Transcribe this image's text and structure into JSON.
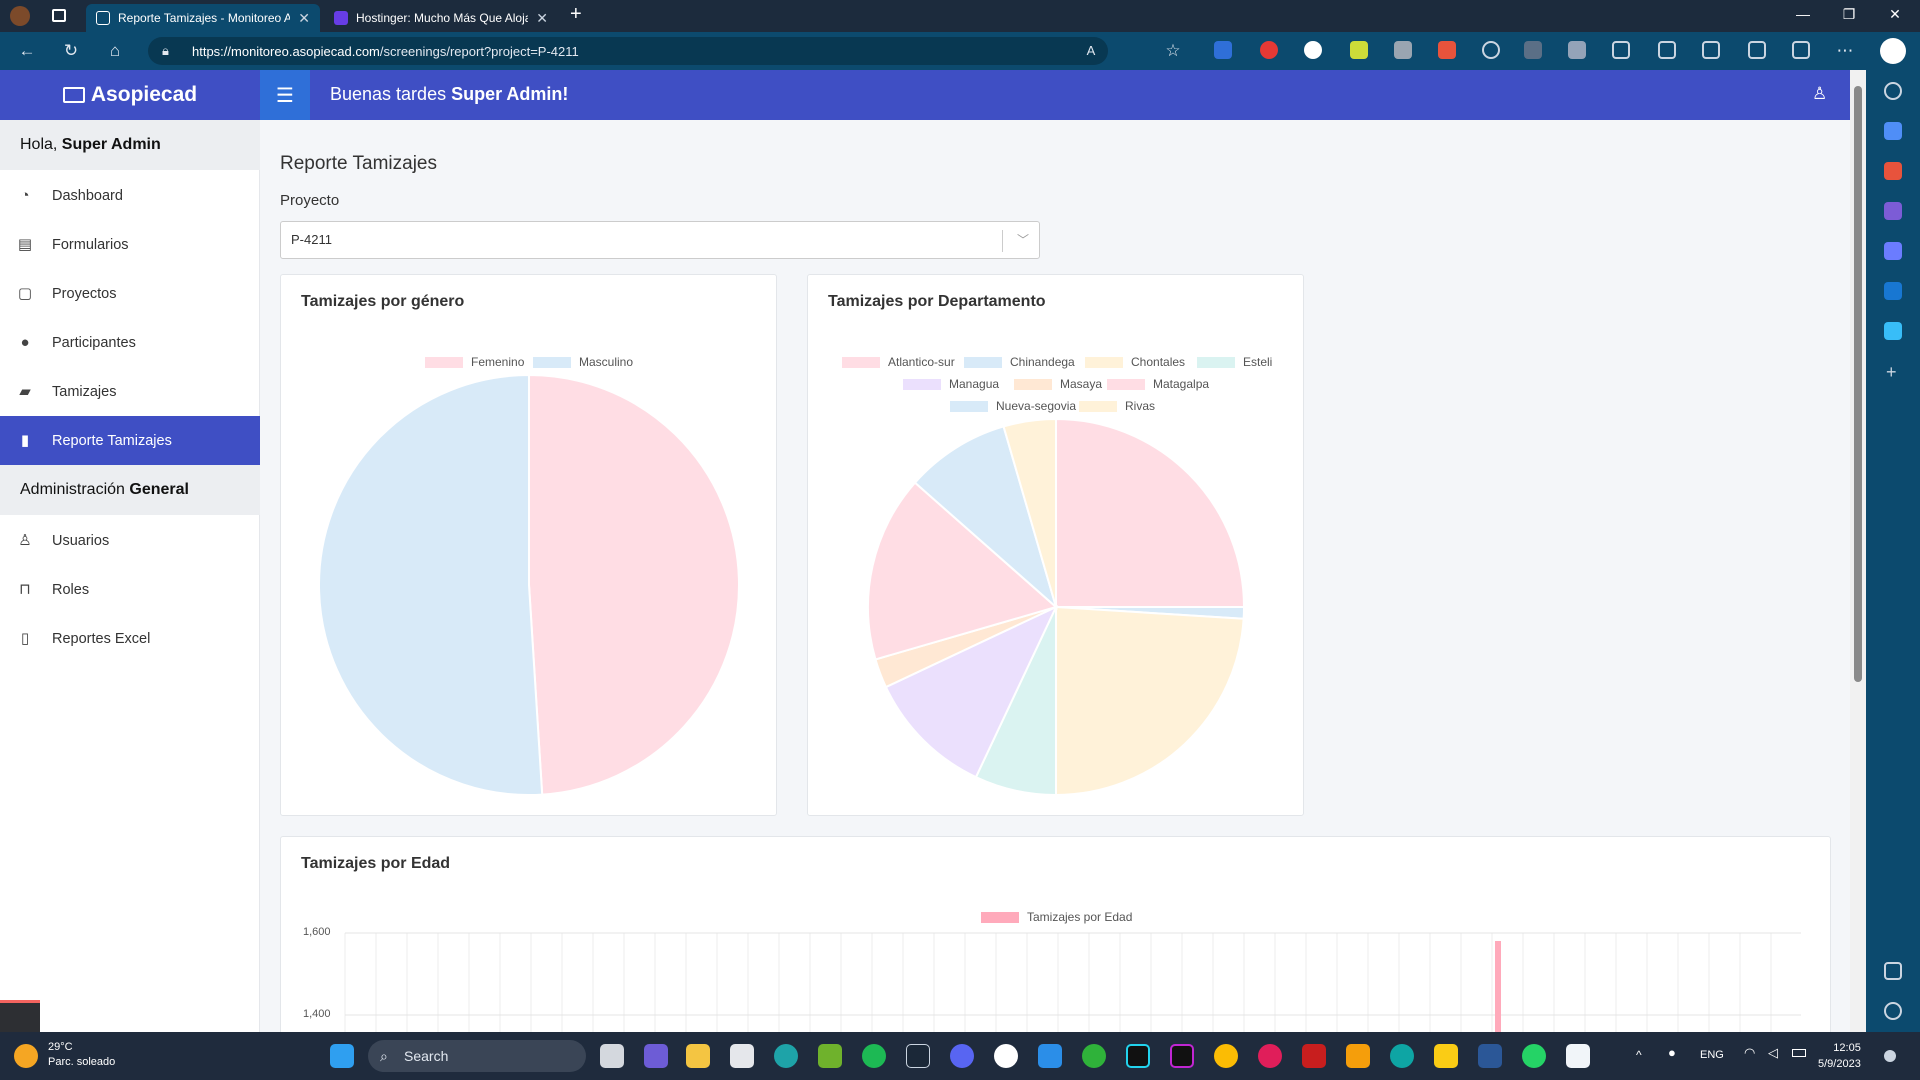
{
  "browser": {
    "tabs": [
      {
        "title": "Reporte Tamizajes - Monitoreo A",
        "active": true
      },
      {
        "title": "Hostinger: Mucho Más Que Alojamiento",
        "active": false
      }
    ],
    "new_tab": "+",
    "url_host": "https://monitoreo.asopiecad.com",
    "url_path": "/screenings/report?project=P-4211",
    "window_controls": [
      "—",
      "❐",
      "✕"
    ]
  },
  "app": {
    "brand": "Asopiecad",
    "greeting_prefix": "Buenas tardes ",
    "greeting_user": "Super Admin!",
    "sidebar": {
      "hello_prefix": "Hola, ",
      "hello_user": "Super Admin",
      "items": [
        {
          "label": "Dashboard",
          "icon": "dashboard-icon",
          "active": false
        },
        {
          "label": "Formularios",
          "icon": "forms-icon",
          "active": false
        },
        {
          "label": "Proyectos",
          "icon": "clipboard-icon",
          "active": false
        },
        {
          "label": "Participantes",
          "icon": "users-icon",
          "active": false
        },
        {
          "label": "Tamizajes",
          "icon": "book-icon",
          "active": false
        },
        {
          "label": "Reporte Tamizajes",
          "icon": "bar-chart-icon",
          "active": true
        }
      ],
      "admin_prefix": "Administración ",
      "admin_bold": "General",
      "admin_items": [
        {
          "label": "Usuarios",
          "icon": "user-icon"
        },
        {
          "label": "Roles",
          "icon": "lock-icon"
        },
        {
          "label": "Reportes Excel",
          "icon": "file-icon"
        }
      ]
    },
    "page_title": "Reporte Tamizajes",
    "project_label": "Proyecto",
    "project_value": "P-4211"
  },
  "chart_data": [
    {
      "type": "pie",
      "title": "Tamizajes por género",
      "categories": [
        "Femenino",
        "Masculino"
      ],
      "values": [
        49,
        51
      ],
      "colors": [
        "#ffdde4",
        "#d8eaf8"
      ]
    },
    {
      "type": "pie",
      "title": "Tamizajes por Departamento",
      "categories": [
        "Atlantico-sur",
        "Chinandega",
        "Chontales",
        "Esteli",
        "Managua",
        "Masaya",
        "Matagalpa",
        "Nueva-segovia",
        "Rivas"
      ],
      "values": [
        25,
        1,
        24,
        7,
        11,
        2.5,
        16,
        9,
        4.5
      ],
      "colors": [
        "#ffdde4",
        "#d8eaf8",
        "#fff2d9",
        "#daf3f1",
        "#ebe0fd",
        "#ffe8d4",
        "#ffdde4",
        "#d8eaf8",
        "#fff2d9"
      ]
    },
    {
      "type": "bar",
      "title": "Tamizajes por Edad",
      "series": [
        {
          "name": "Tamizajes por Edad"
        }
      ],
      "y_ticks": [
        "1,600",
        "1,400"
      ],
      "color": "#ffaabb"
    }
  ],
  "taskbar": {
    "temperature": "29°C",
    "weather": "Parc. soleado",
    "search": "Search",
    "lang": "ENG",
    "time": "12:05",
    "date": "5/9/2023"
  }
}
